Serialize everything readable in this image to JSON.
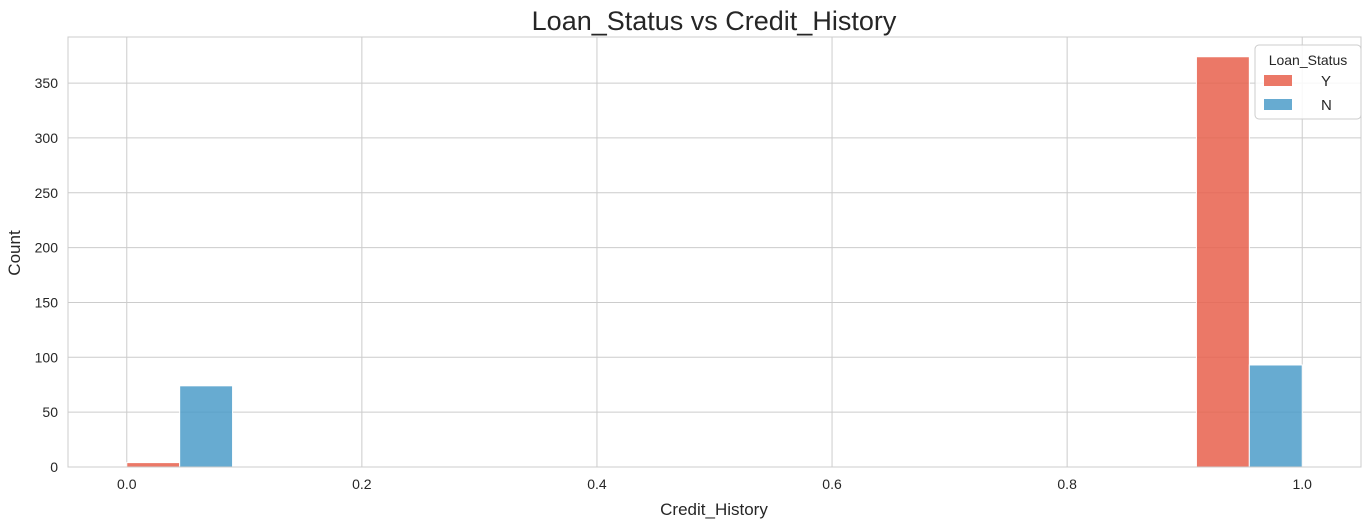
{
  "chart_data": {
    "type": "bar",
    "title": "Loan_Status vs Credit_History",
    "xlabel": "Credit_History",
    "ylabel": "Count",
    "xlim": [
      -0.05,
      1.05
    ],
    "ylim": [
      0,
      392
    ],
    "xticks": [
      0.0,
      0.2,
      0.4,
      0.6,
      0.8,
      1.0
    ],
    "xtick_labels": [
      "0.0",
      "0.2",
      "0.4",
      "0.6",
      "0.8",
      "1.0"
    ],
    "yticks": [
      0,
      50,
      100,
      150,
      200,
      250,
      300,
      350
    ],
    "ytick_labels": [
      "0",
      "50",
      "100",
      "150",
      "200",
      "250",
      "300",
      "350"
    ],
    "grid": true,
    "legend": {
      "title": "Loan_Status",
      "placement": "top-right"
    },
    "series": [
      {
        "name": "Y",
        "color": "#e8604c",
        "bars": [
          {
            "x0": 0.0,
            "x1": 0.045,
            "value": 4
          },
          {
            "x0": 0.91,
            "x1": 0.955,
            "value": 374
          }
        ]
      },
      {
        "name": "N",
        "color": "#4c9cc9",
        "bars": [
          {
            "x0": 0.045,
            "x1": 0.09,
            "value": 74
          },
          {
            "x0": 0.955,
            "x1": 1.0,
            "value": 93
          }
        ]
      }
    ]
  }
}
